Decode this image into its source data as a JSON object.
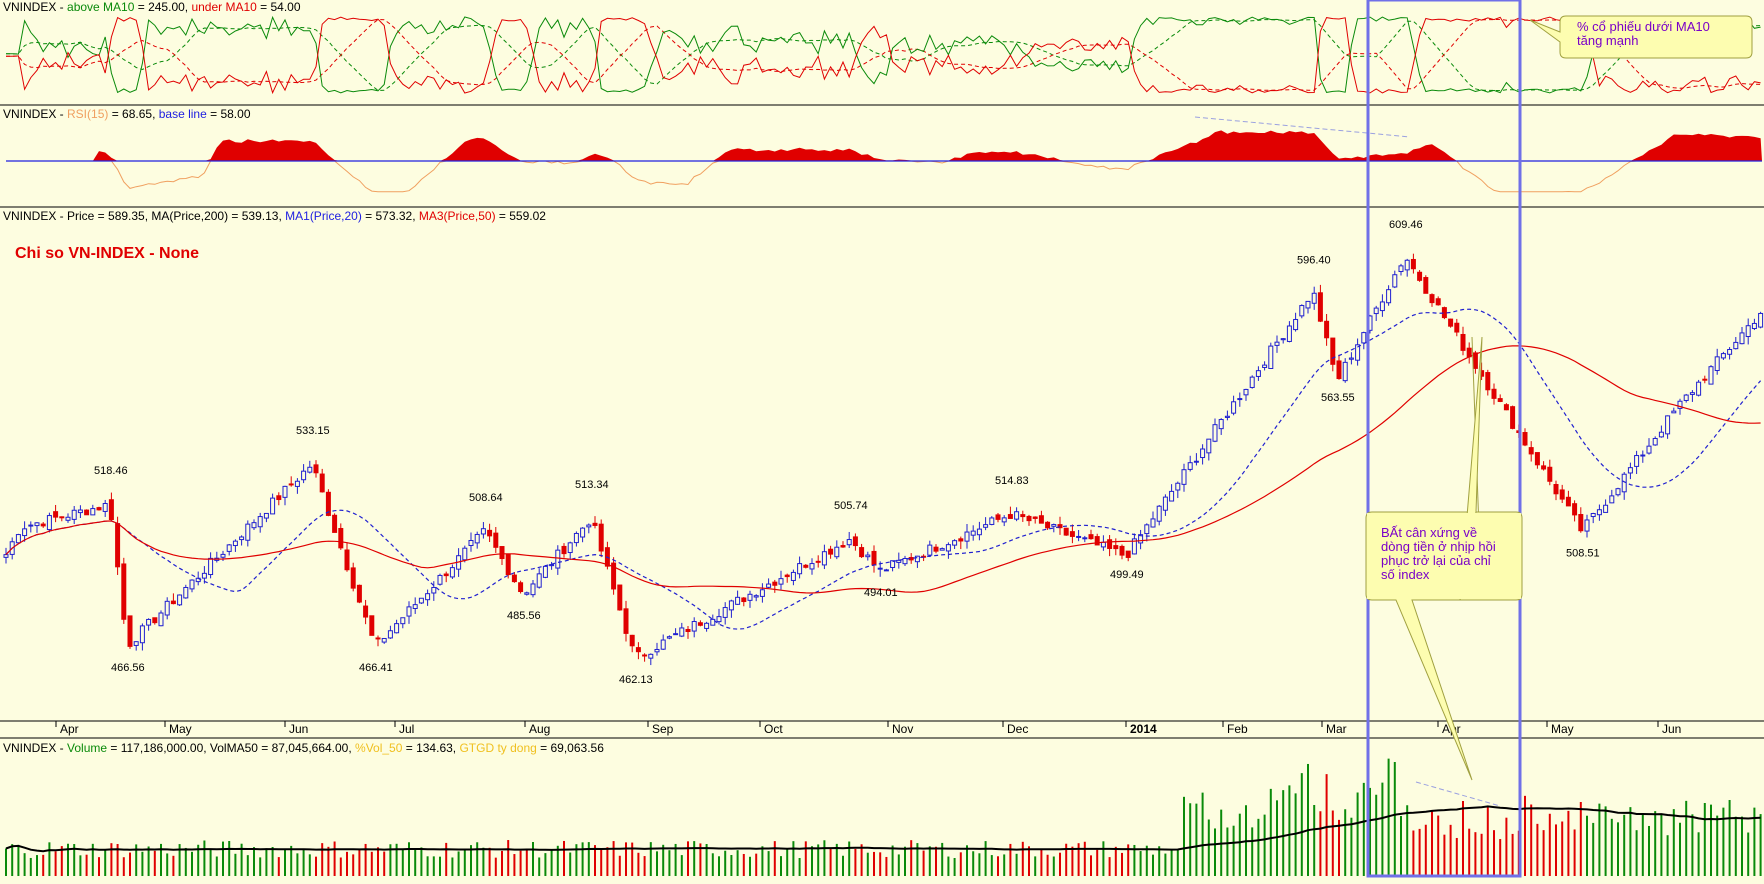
{
  "panels": {
    "breadth": {
      "prefix": "VNINDEX - ",
      "above_label": "above MA10",
      "above_value": " = 245.00, ",
      "under_label": "under MA10",
      "under_value": " = 54.00",
      "colors": {
        "above": "#0a8a0a",
        "under": "#e00000"
      }
    },
    "rsi": {
      "prefix": "VNINDEX - ",
      "rsi_label": "RSI(15)",
      "rsi_value": " = 68.65, ",
      "base_label": "base line",
      "base_value": " = 58.00",
      "colors": {
        "rsi": "#f0a060",
        "fill": "#e00000",
        "base": "#2020e0"
      }
    },
    "price": {
      "prefix": "VNINDEX - Price = 589.35, MA(Price,200) = 539.13, ",
      "ma1_label": "MA1(Price,20)",
      "ma1_value": " = 573.32, ",
      "ma3_label": "MA3(Price,50)",
      "ma3_value": " = 559.02",
      "title": "Chi so VN-INDEX - None",
      "colors": {
        "up": "#2020d0",
        "down": "#e00000",
        "ma20": "#2020d0",
        "ma50": "#e00000"
      }
    },
    "volume": {
      "prefix": "VNINDEX - ",
      "vol_label": "Volume",
      "vol_value": " = 117,186,000.00, VolMA50 = 87,045,664.00, ",
      "pct_label": "%Vol_50",
      "pct_value": "  = 134.63, ",
      "gtgd_label": "GTGD ty dong",
      "gtgd_value": " = 69,063.56",
      "colors": {
        "vol": "#0a8a0a",
        "pct": "#f0c020",
        "gtgd": "#f0c020"
      }
    }
  },
  "annotations": {
    "breadth_note": [
      "% cổ phiếu dưới MA10",
      "tăng mạnh"
    ],
    "price_note": [
      "BẤt cân xứng về",
      "dòng tiền ở nhịp hồi",
      "phục trở lại của chỉ",
      "số index"
    ]
  },
  "chart_data": {
    "type": "candlestick",
    "months": [
      "Apr",
      "May",
      "Jun",
      "Jul",
      "Aug",
      "Sep",
      "Oct",
      "Nov",
      "Dec",
      "2014",
      "Feb",
      "Mar",
      "Apr",
      "May",
      "Jun"
    ],
    "price_labels": [
      "518.46",
      "466.56",
      "533.15",
      "466.41",
      "508.64",
      "485.56",
      "513.34",
      "462.13",
      "505.74",
      "494.01",
      "514.83",
      "499.49",
      "596.40",
      "563.55",
      "609.46",
      "508.51"
    ],
    "price_anchors": [
      518.46,
      466.56,
      533.15,
      466.41,
      508.64,
      485.56,
      513.34,
      462.13,
      505.74,
      494.01,
      514.83,
      499.49,
      596.4,
      563.55,
      609.46,
      508.51
    ],
    "series": [
      {
        "name": "Price",
        "last": 589.35
      },
      {
        "name": "MA(Price,200)",
        "last": 539.13
      },
      {
        "name": "MA1(Price,20)",
        "last": 573.32
      },
      {
        "name": "MA3(Price,50)",
        "last": 559.02
      },
      {
        "name": "RSI(15)",
        "last": 68.65
      },
      {
        "name": "base line",
        "value": 58.0
      },
      {
        "name": "above MA10",
        "last": 245.0
      },
      {
        "name": "under MA10",
        "last": 54.0
      },
      {
        "name": "Volume",
        "last": 117186000.0
      },
      {
        "name": "VolMA50",
        "last": 87045664.0
      },
      {
        "name": "%Vol_50",
        "last": 134.63
      },
      {
        "name": "GTGD ty dong",
        "last": 69063.56
      }
    ]
  }
}
